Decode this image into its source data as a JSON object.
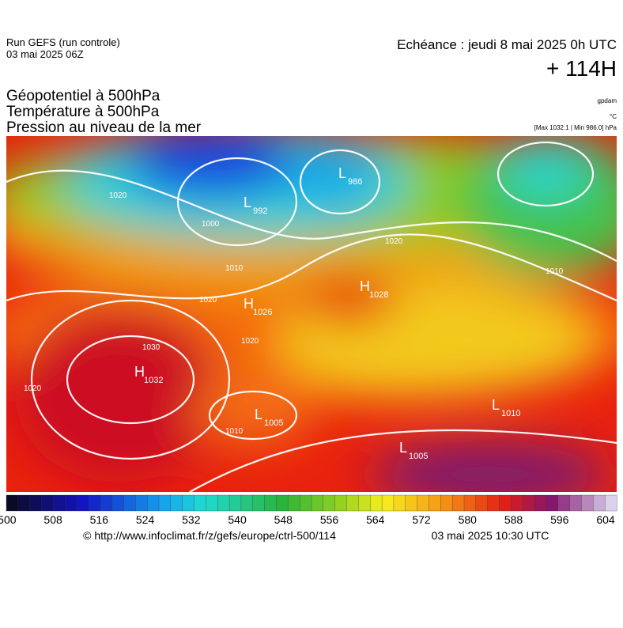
{
  "header": {
    "run": "Run GEFS (run controle)",
    "run_date": "03 mai 2025 06Z",
    "valid": "Echéance : jeudi 8 mai 2025 0h UTC",
    "lead": "+ 114H"
  },
  "fields": [
    "Géopotentiel à 500hPa",
    "Température à 500hPa",
    "Pression au niveau de la mer"
  ],
  "units": [
    "gpdam",
    "°C",
    "[Max 1032.1 | Min 986.0] hPa"
  ],
  "map": {
    "centers": [
      {
        "type": "L",
        "value": 986
      },
      {
        "type": "L",
        "value": 992
      },
      {
        "type": "L",
        "value": 1005
      },
      {
        "type": "L",
        "value": 1005
      },
      {
        "type": "H",
        "value": 1032
      },
      {
        "type": "H",
        "value": 1026
      },
      {
        "type": "H",
        "value": 1028
      },
      {
        "type": "L",
        "value": 1010
      }
    ],
    "isobar_labels": [
      1030,
      1020,
      1020,
      1020,
      1010,
      1000,
      1010,
      1020,
      1010,
      1020
    ]
  },
  "colorbar": {
    "labels": [
      500,
      508,
      516,
      524,
      532,
      540,
      548,
      556,
      564,
      572,
      580,
      588,
      596,
      604
    ]
  },
  "footer": {
    "url": "© http://www.infoclimat.fr/z/gefs/europe/ctrl-500/114",
    "issued": "03 mai 2025 10:30 UTC"
  }
}
